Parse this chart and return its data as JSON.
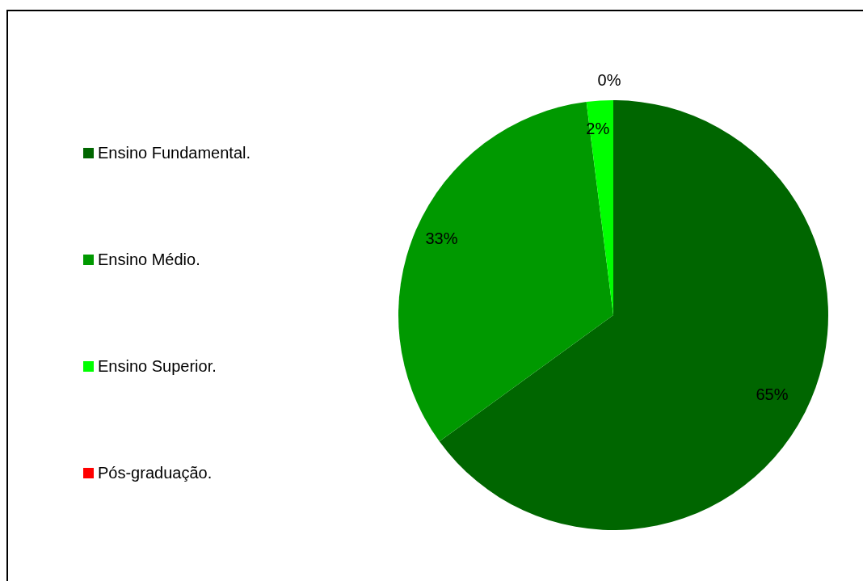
{
  "chart_data": {
    "type": "pie",
    "categories": [
      "Ensino Fundamental.",
      "Ensino Médio.",
      "Ensino Superior.",
      "Pós-graduação."
    ],
    "values": [
      65,
      33,
      2,
      0
    ],
    "colors": [
      "#006600",
      "#009900",
      "#00ff00",
      "#ff0000"
    ],
    "value_labels": [
      "65%",
      "33%",
      "2%",
      "0%"
    ],
    "legend": "left"
  }
}
